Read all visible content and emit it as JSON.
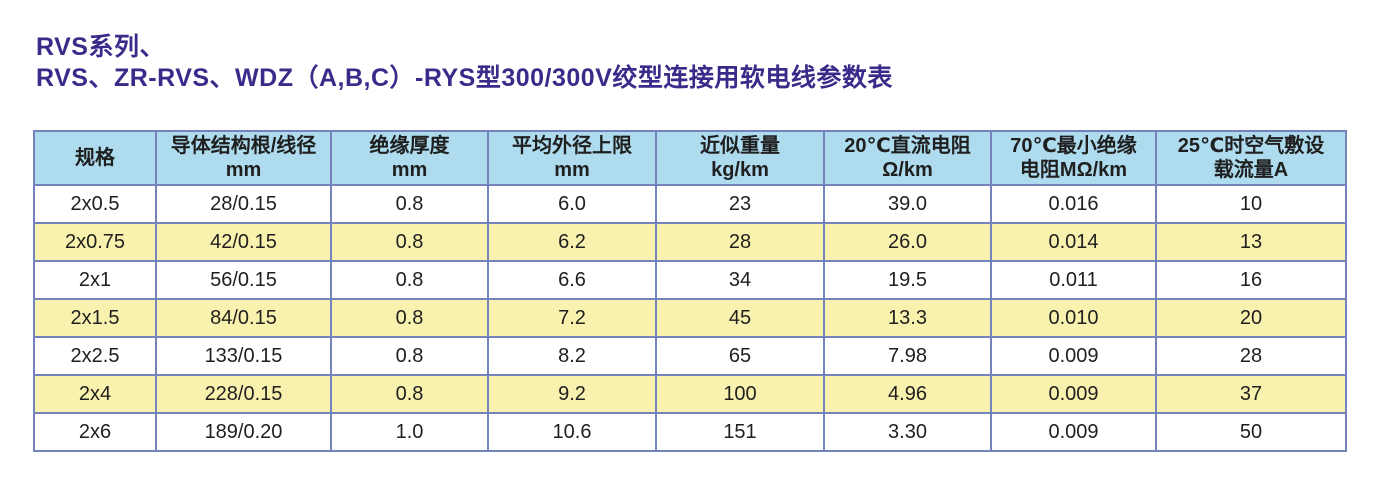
{
  "page": {
    "title": {
      "line1": "RVS系列、",
      "line2": "RVS、ZR-RVS、WDZ（A,B,C）-RYS型300/300V绞型连接用软电线参数表"
    }
  },
  "colors": {
    "header_bg": "#aedcee",
    "row_alt_bg": "#f9f2ae",
    "row_bg": "#ffffff",
    "border": "#7583bd",
    "cell_text": "#1f1f1f",
    "title_color": "#3a2b8a"
  },
  "table": {
    "columns": [
      {
        "line1": "规格",
        "line2": ""
      },
      {
        "line1": "导体结构根/线径",
        "line2": "mm"
      },
      {
        "line1": "绝缘厚度",
        "line2": "mm"
      },
      {
        "line1": "平均外径上限",
        "line2": "mm"
      },
      {
        "line1": "近似重量",
        "line2": "kg/km"
      },
      {
        "line1": "20℃直流电阻",
        "line2": "Ω/km"
      },
      {
        "line1": "70℃最小绝缘",
        "line2": "电阻MΩ/km"
      },
      {
        "line1": "25℃时空气敷设",
        "line2": "载流量A"
      }
    ],
    "rows": [
      [
        "2x0.5",
        "28/0.15",
        "0.8",
        "6.0",
        "23",
        "39.0",
        "0.016",
        "10"
      ],
      [
        "2x0.75",
        "42/0.15",
        "0.8",
        "6.2",
        "28",
        "26.0",
        "0.014",
        "13"
      ],
      [
        "2x1",
        "56/0.15",
        "0.8",
        "6.6",
        "34",
        "19.5",
        "0.011",
        "16"
      ],
      [
        "2x1.5",
        "84/0.15",
        "0.8",
        "7.2",
        "45",
        "13.3",
        "0.010",
        "20"
      ],
      [
        "2x2.5",
        "133/0.15",
        "0.8",
        "8.2",
        "65",
        "7.98",
        "0.009",
        "28"
      ],
      [
        "2x4",
        "228/0.15",
        "0.8",
        "9.2",
        "100",
        "4.96",
        "0.009",
        "37"
      ],
      [
        "2x6",
        "189/0.20",
        "1.0",
        "10.6",
        "151",
        "3.30",
        "0.009",
        "50"
      ]
    ]
  }
}
